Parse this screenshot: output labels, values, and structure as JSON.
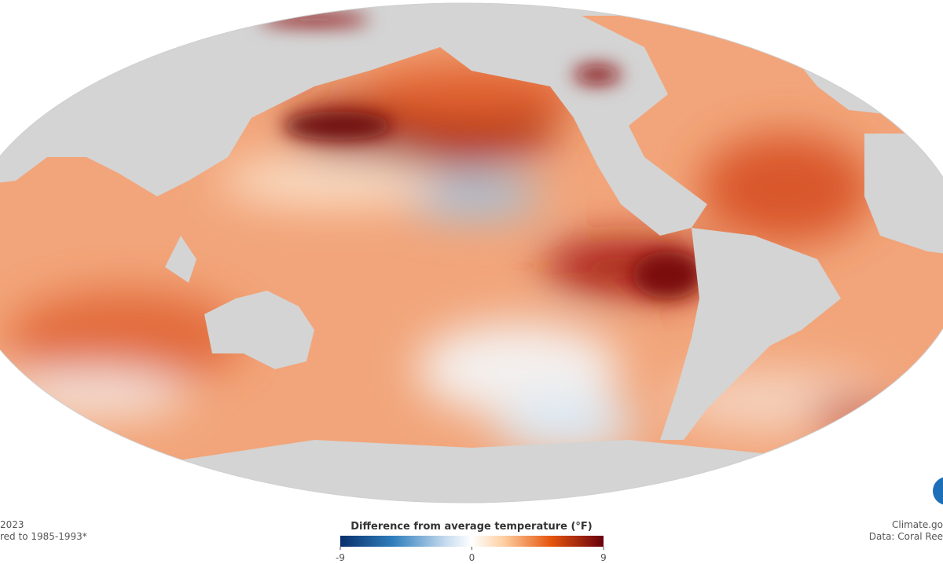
{
  "left_note": {
    "line1": "2023",
    "line2": "red to 1985-1993*"
  },
  "legend": {
    "title": "Difference from average temperature (°F)",
    "range": [
      -9,
      9
    ],
    "ticks": [
      -9,
      0,
      9
    ]
  },
  "credits": {
    "line1": "Climate.go",
    "line2": "Data: Coral Ree"
  }
}
